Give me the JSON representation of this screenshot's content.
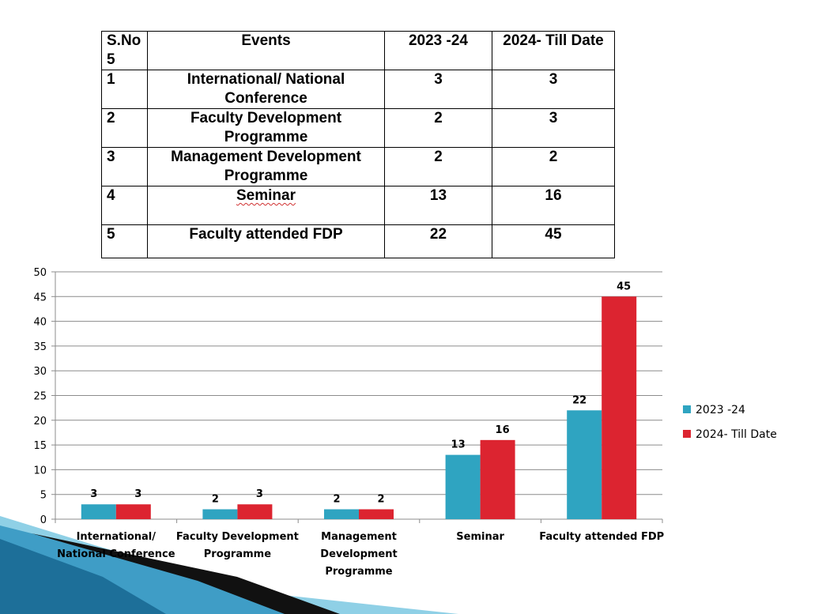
{
  "table": {
    "headers": [
      "S.No 5",
      "Events",
      "2023 -24",
      "2024- Till Date"
    ],
    "rows": [
      {
        "sno": "1",
        "event": "International/ National Conference",
        "y2023": "3",
        "y2024": "3"
      },
      {
        "sno": "2",
        "event": "Faculty Development Programme",
        "y2023": "2",
        "y2024": "3"
      },
      {
        "sno": "3",
        "event": "Management Development Programme",
        "y2023": "2",
        "y2024": "2"
      },
      {
        "sno": "4",
        "event": "Seminar",
        "y2023": "13",
        "y2024": "16"
      },
      {
        "sno": "5",
        "event": "Faculty attended FDP",
        "y2023": "22",
        "y2024": "45"
      }
    ]
  },
  "chart_data": {
    "type": "bar",
    "categories": [
      [
        "International/",
        "National Conference"
      ],
      [
        "Faculty Development",
        "Programme"
      ],
      [
        "Management",
        "Development",
        "Programme"
      ],
      [
        "Seminar"
      ],
      [
        "Faculty attended FDP"
      ]
    ],
    "series": [
      {
        "name": "2023 -24",
        "color": "#2fa4c1",
        "values": [
          3,
          2,
          2,
          13,
          22
        ]
      },
      {
        "name": "2024- Till Date",
        "color": "#dc2430",
        "values": [
          3,
          3,
          2,
          16,
          45
        ]
      }
    ],
    "ylim": [
      0,
      50
    ],
    "yticks": [
      0,
      5,
      10,
      15,
      20,
      25,
      30,
      35,
      40,
      45,
      50
    ],
    "grid": true,
    "legend": "right",
    "title": "",
    "xlabel": "",
    "ylabel": ""
  }
}
